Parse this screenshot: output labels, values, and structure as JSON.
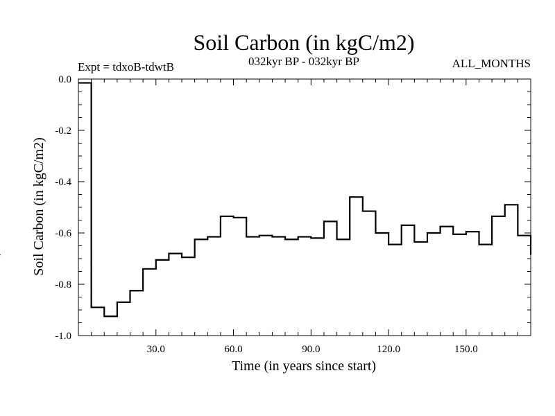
{
  "chart_data": {
    "type": "line",
    "style": "step",
    "title": "Soil Carbon (in kgC/m2)",
    "experiment_label": "Expt = tdxoB-tdwtB",
    "period_label": "032kyr BP - 032kyr BP",
    "months_label": "ALL_MONTHS",
    "xlabel": "Time (in years since start)",
    "ylabel": "Soil Carbon (in kgC/m2)",
    "xlim": [
      0,
      175
    ],
    "ylim": [
      -1.0,
      0.0
    ],
    "x_ticks": [
      30,
      60,
      90,
      120,
      150
    ],
    "x_tick_labels": [
      "30.0",
      "60.0",
      "90.0",
      "120.0",
      "150.0"
    ],
    "y_ticks": [
      0.0,
      -0.2,
      -0.4,
      -0.6,
      -0.8,
      -1.0
    ],
    "y_tick_labels": [
      "0.0",
      "-0.2",
      "-0.4",
      "-0.6",
      "-0.8",
      "-1.0"
    ],
    "x": [
      0,
      5,
      10,
      15,
      20,
      25,
      30,
      35,
      40,
      45,
      50,
      55,
      60,
      65,
      70,
      75,
      80,
      85,
      90,
      95,
      100,
      105,
      110,
      115,
      120,
      125,
      130,
      135,
      140,
      145,
      150,
      155,
      160,
      165,
      170,
      175
    ],
    "values": [
      -0.015,
      -0.89,
      -0.925,
      -0.87,
      -0.825,
      -0.74,
      -0.705,
      -0.68,
      -0.695,
      -0.625,
      -0.615,
      -0.535,
      -0.54,
      -0.615,
      -0.61,
      -0.615,
      -0.625,
      -0.615,
      -0.62,
      -0.555,
      -0.625,
      -0.46,
      -0.515,
      -0.6,
      -0.645,
      -0.57,
      -0.635,
      -0.6,
      -0.575,
      -0.605,
      -0.595,
      -0.645,
      -0.535,
      -0.49,
      -0.61,
      -0.685
    ]
  }
}
